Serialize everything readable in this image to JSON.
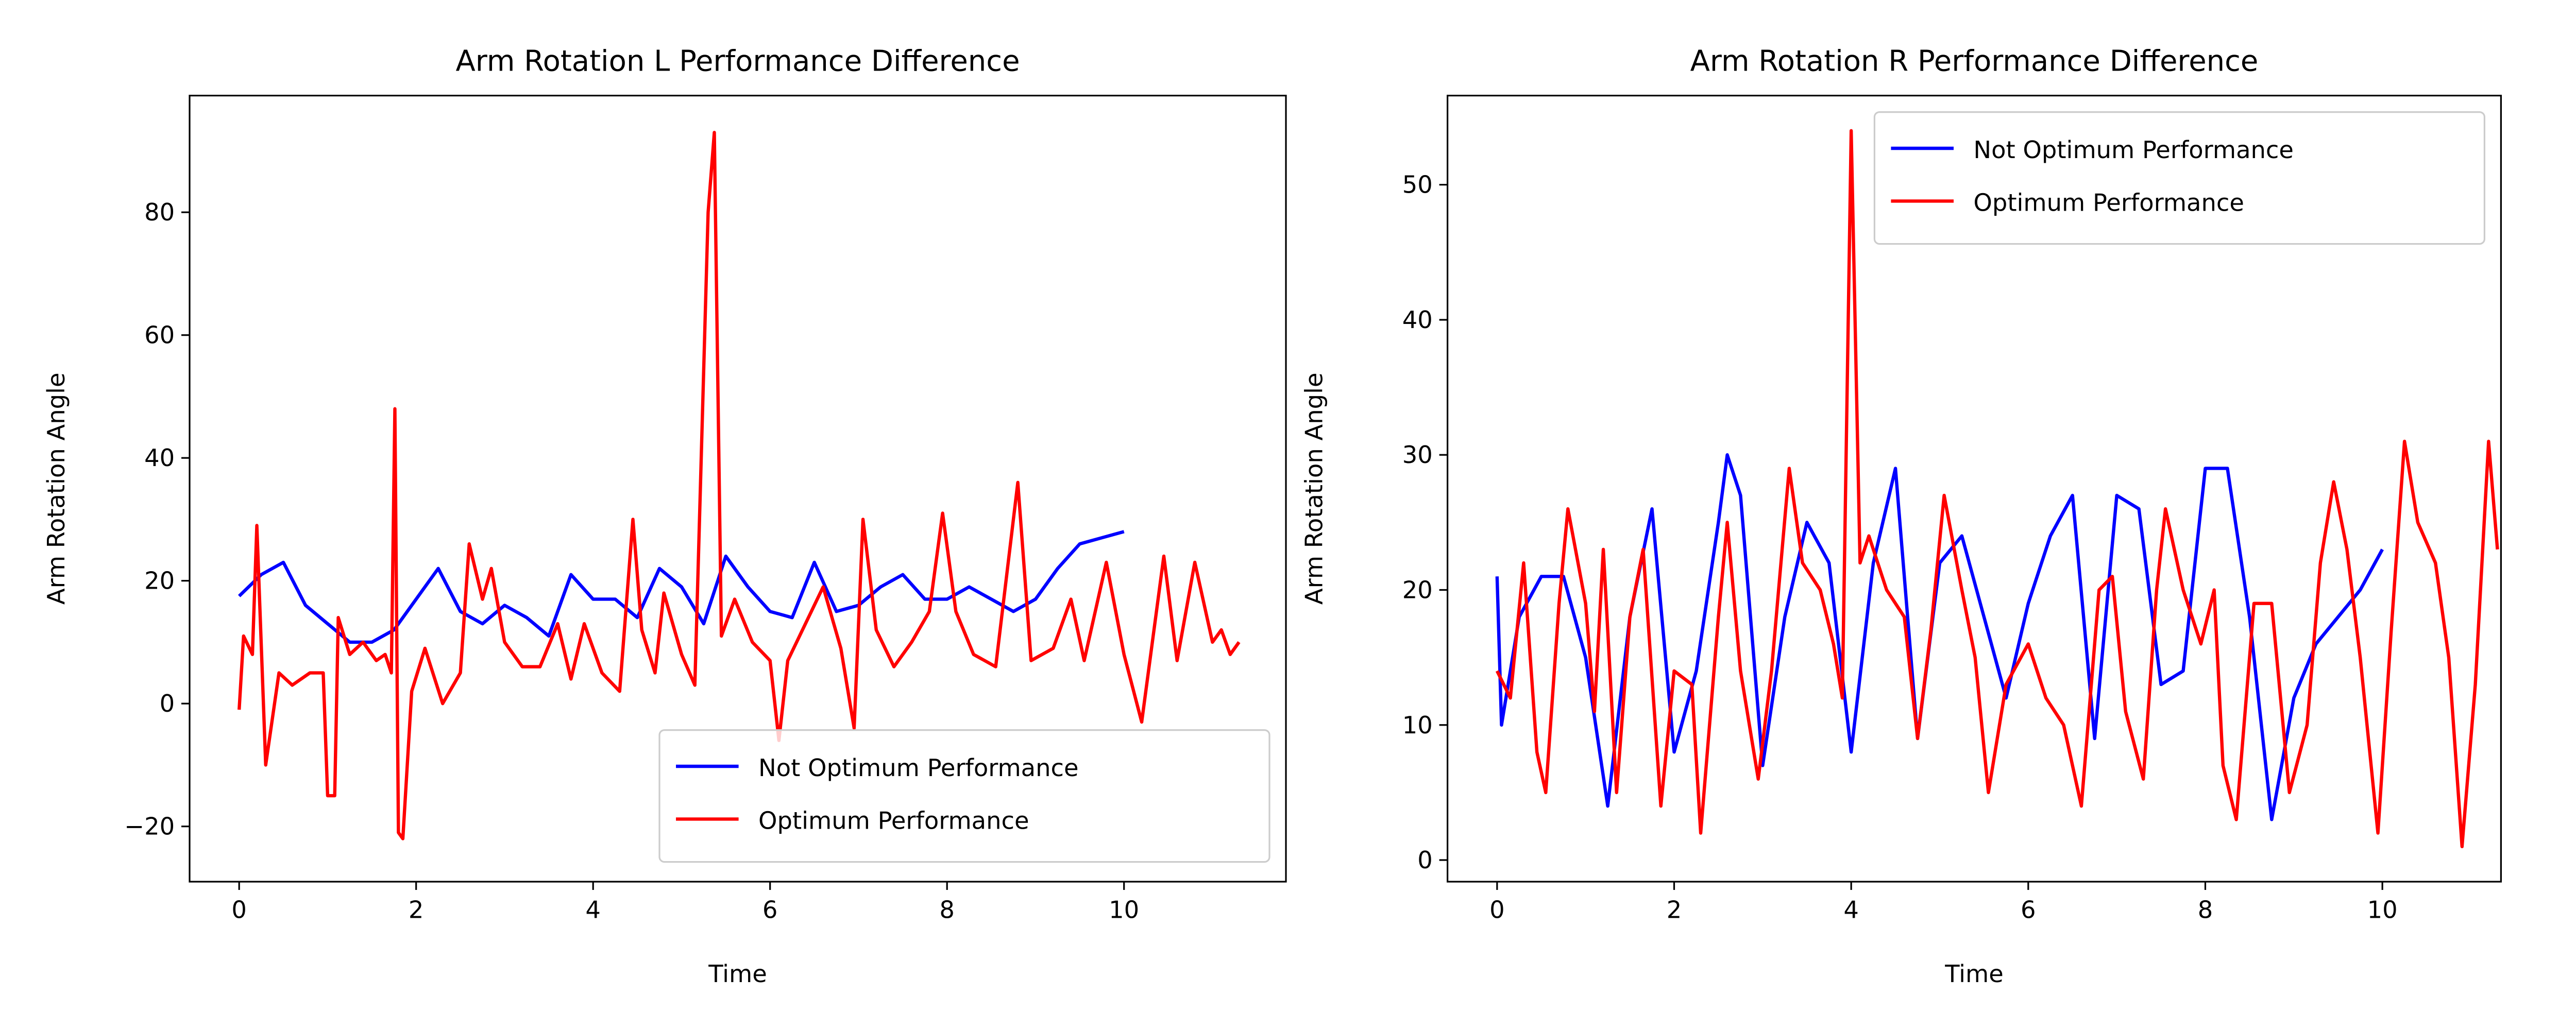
{
  "chart_data": [
    {
      "type": "line",
      "title": "Arm Rotation L Performance Difference",
      "x_label": "Time",
      "y_label": "Arm Rotation Angle",
      "xlim": [
        -0.56,
        11.83
      ],
      "ylim": [
        -29,
        99
      ],
      "xticks": [
        0,
        2,
        4,
        6,
        8,
        10
      ],
      "yticks": [
        {
          "value": -20,
          "label": "−20"
        },
        0,
        20,
        40,
        60,
        80
      ],
      "legend": "lower right",
      "series": [
        {
          "name": "Not Optimum Performance",
          "color": "#0000ff",
          "x": [
            0,
            0.25,
            0.5,
            0.75,
            1.0,
            1.25,
            1.5,
            1.75,
            2.0,
            2.25,
            2.5,
            2.75,
            3.0,
            3.25,
            3.5,
            3.75,
            4.0,
            4.25,
            4.5,
            4.75,
            5.0,
            5.25,
            5.5,
            5.75,
            6.0,
            6.25,
            6.5,
            6.75,
            7.0,
            7.25,
            7.5,
            7.75,
            8.0,
            8.25,
            8.5,
            8.75,
            9.0,
            9.25,
            9.5,
            9.75,
            10.0
          ],
          "values": [
            17.5,
            21,
            23,
            16,
            13,
            10,
            10,
            12,
            17,
            22,
            15,
            13,
            16,
            14,
            11,
            21,
            17,
            17,
            14,
            22,
            19,
            13,
            24,
            19,
            15,
            14,
            23,
            15,
            16,
            19,
            21,
            17,
            17,
            19,
            17,
            15,
            17,
            22,
            26,
            27,
            28
          ]
        },
        {
          "name": "Optimum Performance",
          "color": "#ff0000",
          "x": [
            0,
            0.05,
            0.15,
            0.2,
            0.3,
            0.45,
            0.6,
            0.8,
            0.95,
            1.0,
            1.08,
            1.12,
            1.25,
            1.4,
            1.55,
            1.65,
            1.72,
            1.76,
            1.8,
            1.85,
            1.95,
            2.1,
            2.3,
            2.5,
            2.6,
            2.75,
            2.85,
            3.0,
            3.2,
            3.4,
            3.6,
            3.75,
            3.9,
            4.1,
            4.3,
            4.45,
            4.55,
            4.7,
            4.8,
            5.0,
            5.15,
            5.3,
            5.37,
            5.45,
            5.6,
            5.8,
            6.0,
            6.1,
            6.2,
            6.4,
            6.6,
            6.8,
            6.95,
            7.05,
            7.2,
            7.4,
            7.6,
            7.8,
            7.95,
            8.1,
            8.3,
            8.55,
            8.8,
            8.95,
            9.2,
            9.4,
            9.55,
            9.8,
            10.0,
            10.2,
            10.45,
            10.6,
            10.8,
            11.0,
            11.1,
            11.2,
            11.3
          ],
          "values": [
            -1,
            11,
            8,
            29,
            -10,
            5,
            3,
            5,
            5,
            -15,
            -15,
            14,
            8,
            10,
            7,
            8,
            5,
            48,
            -21,
            -22,
            2,
            9,
            0,
            5,
            26,
            17,
            22,
            10,
            6,
            6,
            13,
            4,
            13,
            5,
            2,
            30,
            12,
            5,
            18,
            8,
            3,
            80,
            93,
            11,
            17,
            10,
            7,
            -6,
            7,
            13,
            19,
            9,
            -4,
            30,
            12,
            6,
            10,
            15,
            31,
            15,
            8,
            6,
            36,
            7,
            9,
            17,
            7,
            23,
            8,
            -3,
            24,
            7,
            23,
            10,
            12,
            8,
            10
          ]
        }
      ]
    },
    {
      "type": "line",
      "title": "Arm Rotation R Performance Difference",
      "x_label": "Time",
      "y_label": "Arm Rotation Angle",
      "xlim": [
        -0.56,
        11.34
      ],
      "ylim": [
        -1.6,
        56.6
      ],
      "xticks": [
        0,
        2,
        4,
        6,
        8,
        10
      ],
      "yticks": [
        0,
        10,
        20,
        30,
        40,
        50
      ],
      "legend": "upper right",
      "series": [
        {
          "name": "Not Optimum Performance",
          "color": "#0000ff",
          "x": [
            0,
            0.05,
            0.25,
            0.5,
            0.75,
            1.0,
            1.25,
            1.5,
            1.75,
            2.0,
            2.25,
            2.5,
            2.6,
            2.75,
            3.0,
            3.25,
            3.5,
            3.75,
            4.0,
            4.25,
            4.5,
            4.75,
            5.0,
            5.25,
            5.5,
            5.75,
            6.0,
            6.25,
            6.5,
            6.75,
            7.0,
            7.25,
            7.5,
            7.75,
            8.0,
            8.25,
            8.5,
            8.75,
            9.0,
            9.25,
            9.5,
            9.75,
            10.0
          ],
          "values": [
            21,
            10,
            18,
            21,
            21,
            15,
            4,
            18,
            26,
            8,
            14,
            25,
            30,
            27,
            7,
            18,
            25,
            22,
            8,
            22,
            29,
            9,
            22,
            24,
            18,
            12,
            19,
            24,
            27,
            9,
            27,
            26,
            13,
            14,
            29,
            29,
            18,
            3,
            12,
            16,
            18,
            20,
            23
          ]
        },
        {
          "name": "Optimum Performance",
          "color": "#ff0000",
          "x": [
            0,
            0.15,
            0.3,
            0.45,
            0.55,
            0.7,
            0.8,
            1.0,
            1.1,
            1.2,
            1.35,
            1.5,
            1.65,
            1.85,
            2.0,
            2.2,
            2.3,
            2.5,
            2.6,
            2.75,
            2.95,
            3.1,
            3.3,
            3.45,
            3.65,
            3.8,
            3.9,
            4.0,
            4.1,
            4.2,
            4.4,
            4.6,
            4.75,
            4.9,
            5.05,
            5.25,
            5.4,
            5.55,
            5.75,
            6.0,
            6.2,
            6.4,
            6.6,
            6.8,
            6.95,
            7.1,
            7.3,
            7.45,
            7.55,
            7.75,
            7.95,
            8.1,
            8.2,
            8.35,
            8.55,
            8.75,
            8.95,
            9.15,
            9.3,
            9.45,
            9.6,
            9.75,
            9.95,
            10.1,
            10.25,
            10.4,
            10.6,
            10.75,
            10.9,
            11.05,
            11.2,
            11.3
          ],
          "values": [
            14,
            12,
            22,
            8,
            5,
            19,
            26,
            19,
            11,
            23,
            5,
            18,
            23,
            4,
            14,
            13,
            2,
            18,
            25,
            14,
            6,
            14,
            29,
            22,
            20,
            16,
            12,
            54,
            22,
            24,
            20,
            18,
            9,
            17,
            27,
            20,
            15,
            5,
            13,
            16,
            12,
            10,
            4,
            20,
            21,
            11,
            6,
            20,
            26,
            20,
            16,
            20,
            7,
            3,
            19,
            19,
            5,
            10,
            22,
            28,
            23,
            15,
            2,
            17,
            31,
            25,
            22,
            15,
            1,
            13,
            31,
            23
          ]
        }
      ]
    }
  ]
}
